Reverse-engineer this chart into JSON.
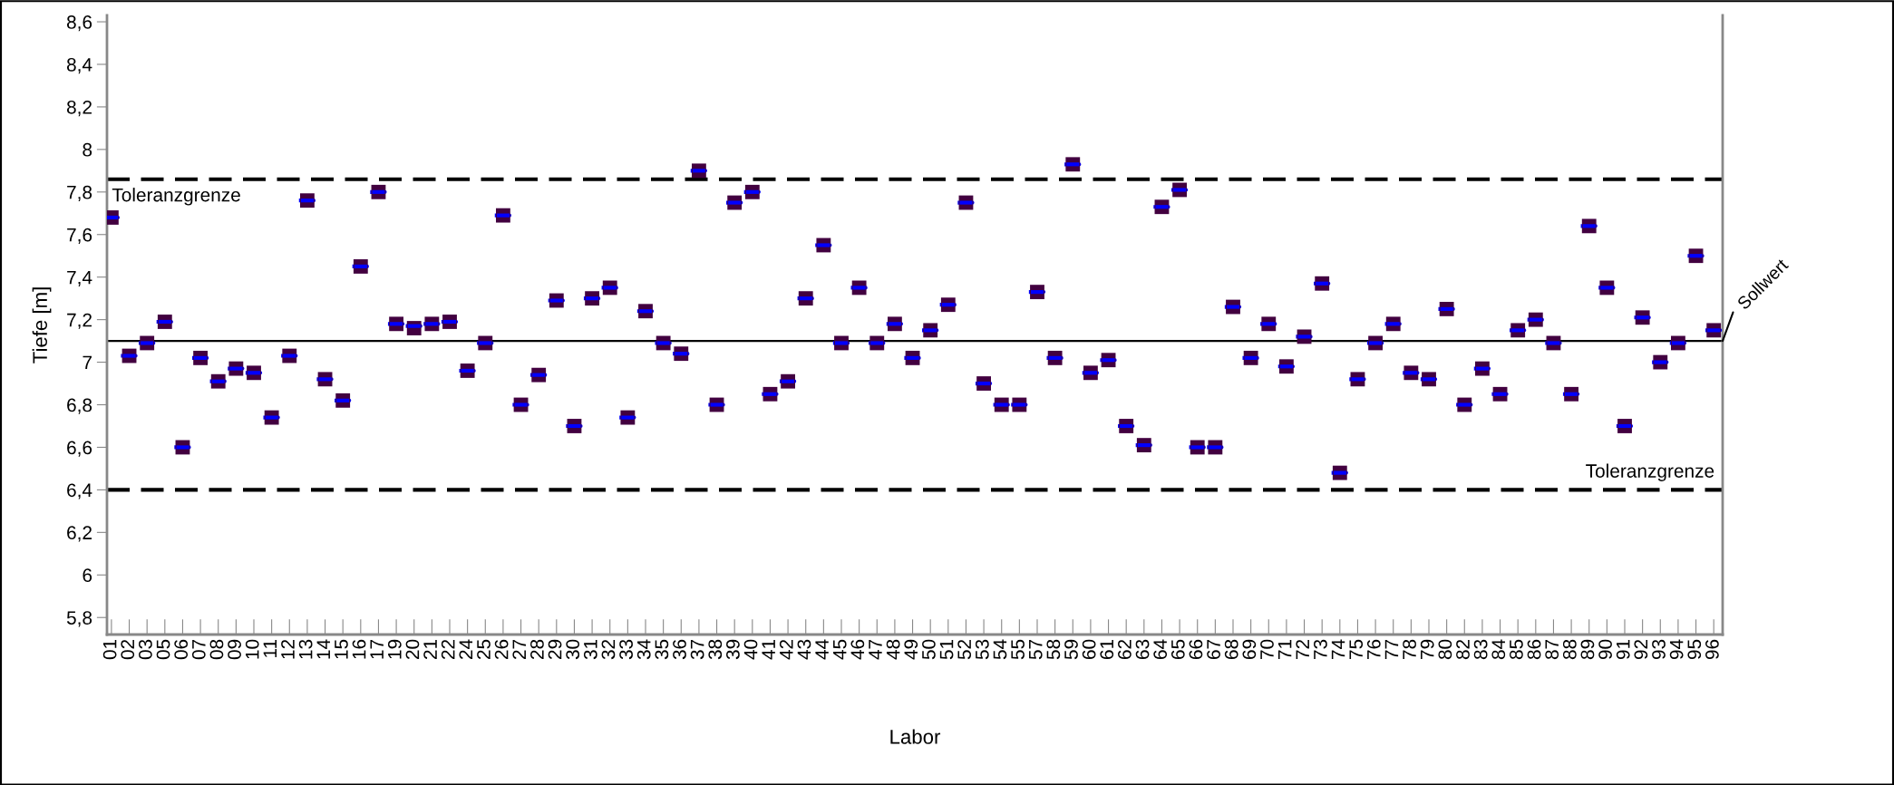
{
  "chart_data": {
    "type": "scatter",
    "xlabel": "Labor",
    "ylabel": "Tiefe [m]",
    "categories": [
      "01",
      "02",
      "03",
      "05",
      "06",
      "07",
      "08",
      "09",
      "10",
      "11",
      "12",
      "13",
      "14",
      "15",
      "16",
      "17",
      "19",
      "20",
      "21",
      "22",
      "24",
      "25",
      "26",
      "27",
      "28",
      "29",
      "30",
      "31",
      "32",
      "33",
      "34",
      "35",
      "36",
      "37",
      "38",
      "39",
      "40",
      "41",
      "42",
      "43",
      "44",
      "45",
      "46",
      "47",
      "48",
      "49",
      "50",
      "51",
      "52",
      "53",
      "54",
      "55",
      "57",
      "58",
      "59",
      "60",
      "61",
      "62",
      "63",
      "64",
      "65",
      "66",
      "67",
      "68",
      "69",
      "70",
      "71",
      "72",
      "73",
      "74",
      "75",
      "76",
      "77",
      "78",
      "79",
      "80",
      "82",
      "83",
      "84",
      "85",
      "86",
      "87",
      "88",
      "89",
      "90",
      "91",
      "92",
      "93",
      "94",
      "95",
      "96"
    ],
    "series": [
      {
        "type": "box",
        "color": "#0000ff",
        "boxes": [
          {
            "low": 7.68,
            "q1": 7.68,
            "median": 7.68,
            "q3": 7.68,
            "high": 7.68
          },
          {
            "low": 7.03,
            "q1": 7.03,
            "median": 7.03,
            "q3": 7.03,
            "high": 7.03
          },
          {
            "low": 7.09,
            "q1": 7.09,
            "median": 7.09,
            "q3": 7.09,
            "high": 7.09
          },
          {
            "low": 7.19,
            "q1": 7.19,
            "median": 7.19,
            "q3": 7.19,
            "high": 7.19
          },
          {
            "low": 6.6,
            "q1": 6.6,
            "median": 6.6,
            "q3": 6.6,
            "high": 6.6
          },
          {
            "low": 7.02,
            "q1": 7.02,
            "median": 7.02,
            "q3": 7.02,
            "high": 7.02
          },
          {
            "low": 6.91,
            "q1": 6.91,
            "median": 6.91,
            "q3": 6.91,
            "high": 6.91
          },
          {
            "low": 6.97,
            "q1": 6.97,
            "median": 6.97,
            "q3": 6.97,
            "high": 6.97
          },
          {
            "low": 6.95,
            "q1": 6.95,
            "median": 6.95,
            "q3": 6.95,
            "high": 6.95
          },
          {
            "low": 6.74,
            "q1": 6.74,
            "median": 6.74,
            "q3": 6.74,
            "high": 6.74
          },
          {
            "low": 7.03,
            "q1": 7.03,
            "median": 7.03,
            "q3": 7.03,
            "high": 7.03
          },
          {
            "low": 7.76,
            "q1": 7.76,
            "median": 7.76,
            "q3": 7.76,
            "high": 7.76
          },
          {
            "low": 6.92,
            "q1": 6.92,
            "median": 6.92,
            "q3": 6.92,
            "high": 6.92
          },
          {
            "low": 6.82,
            "q1": 6.82,
            "median": 6.82,
            "q3": 6.82,
            "high": 6.82
          },
          {
            "low": 7.45,
            "q1": 7.45,
            "median": 7.45,
            "q3": 7.45,
            "high": 7.45
          },
          {
            "low": 7.8,
            "q1": 7.8,
            "median": 7.8,
            "q3": 7.8,
            "high": 7.8
          },
          {
            "low": 7.18,
            "q1": 7.18,
            "median": 7.18,
            "q3": 7.18,
            "high": 7.18
          },
          {
            "low": 7.17,
            "q1": 7.17,
            "median": 7.17,
            "q3": 7.17,
            "high": 7.17
          },
          {
            "low": 7.18,
            "q1": 7.18,
            "median": 7.18,
            "q3": 7.18,
            "high": 7.18
          },
          {
            "low": 7.19,
            "q1": 7.19,
            "median": 7.19,
            "q3": 7.19,
            "high": 7.19
          },
          {
            "low": 6.96,
            "q1": 6.96,
            "median": 6.96,
            "q3": 6.96,
            "high": 6.96
          },
          {
            "low": 7.09,
            "q1": 7.09,
            "median": 7.09,
            "q3": 7.09,
            "high": 7.09
          },
          {
            "low": 7.69,
            "q1": 7.69,
            "median": 7.69,
            "q3": 7.69,
            "high": 7.69
          },
          {
            "low": 6.8,
            "q1": 6.8,
            "median": 6.8,
            "q3": 6.8,
            "high": 6.8
          },
          {
            "low": 6.94,
            "q1": 6.94,
            "median": 6.94,
            "q3": 6.94,
            "high": 6.94
          },
          {
            "low": 7.29,
            "q1": 7.29,
            "median": 7.29,
            "q3": 7.29,
            "high": 7.29
          },
          {
            "low": 6.7,
            "q1": 6.7,
            "median": 6.7,
            "q3": 6.7,
            "high": 6.7
          },
          {
            "low": 7.3,
            "q1": 7.3,
            "median": 7.3,
            "q3": 7.3,
            "high": 7.3
          },
          {
            "low": 7.35,
            "q1": 7.35,
            "median": 7.35,
            "q3": 7.35,
            "high": 7.35
          },
          {
            "low": 6.74,
            "q1": 6.74,
            "median": 6.74,
            "q3": 6.74,
            "high": 6.74
          },
          {
            "low": 7.24,
            "q1": 7.24,
            "median": 7.24,
            "q3": 7.24,
            "high": 7.24
          },
          {
            "low": 7.09,
            "q1": 7.09,
            "median": 7.09,
            "q3": 7.09,
            "high": 7.09
          },
          {
            "low": 7.04,
            "q1": 7.04,
            "median": 7.04,
            "q3": 7.04,
            "high": 7.04
          },
          {
            "low": 7.9,
            "q1": 7.9,
            "median": 7.9,
            "q3": 7.9,
            "high": 7.9
          },
          {
            "low": 6.8,
            "q1": 6.8,
            "median": 6.8,
            "q3": 6.8,
            "high": 6.8
          },
          {
            "low": 7.75,
            "q1": 7.75,
            "median": 7.75,
            "q3": 7.75,
            "high": 7.75
          },
          {
            "low": 7.8,
            "q1": 7.8,
            "median": 7.8,
            "q3": 7.8,
            "high": 7.8
          },
          {
            "low": 6.85,
            "q1": 6.85,
            "median": 6.85,
            "q3": 6.85,
            "high": 6.85
          },
          {
            "low": 6.91,
            "q1": 6.91,
            "median": 6.91,
            "q3": 6.91,
            "high": 6.91
          },
          {
            "low": 7.3,
            "q1": 7.3,
            "median": 7.3,
            "q3": 7.3,
            "high": 7.3
          },
          {
            "low": 7.55,
            "q1": 7.55,
            "median": 7.55,
            "q3": 7.55,
            "high": 7.55
          },
          {
            "low": 7.09,
            "q1": 7.09,
            "median": 7.09,
            "q3": 7.09,
            "high": 7.09
          },
          {
            "low": 7.35,
            "q1": 7.35,
            "median": 7.35,
            "q3": 7.35,
            "high": 7.35
          },
          {
            "low": 7.09,
            "q1": 7.09,
            "median": 7.09,
            "q3": 7.09,
            "high": 7.09
          },
          {
            "low": 7.18,
            "q1": 7.18,
            "median": 7.18,
            "q3": 7.18,
            "high": 7.18
          },
          {
            "low": 7.02,
            "q1": 7.02,
            "median": 7.02,
            "q3": 7.02,
            "high": 7.02
          },
          {
            "low": 7.15,
            "q1": 7.15,
            "median": 7.15,
            "q3": 7.15,
            "high": 7.15
          },
          {
            "low": 7.27,
            "q1": 7.27,
            "median": 7.27,
            "q3": 7.27,
            "high": 7.27
          },
          {
            "low": 7.75,
            "q1": 7.75,
            "median": 7.75,
            "q3": 7.75,
            "high": 7.75
          },
          {
            "low": 6.9,
            "q1": 6.9,
            "median": 6.9,
            "q3": 6.9,
            "high": 6.9
          },
          {
            "low": 6.8,
            "q1": 6.8,
            "median": 6.8,
            "q3": 6.8,
            "high": 6.8
          },
          {
            "low": 6.8,
            "q1": 6.8,
            "median": 6.8,
            "q3": 6.8,
            "high": 6.8
          },
          {
            "low": 7.33,
            "q1": 7.33,
            "median": 7.33,
            "q3": 7.33,
            "high": 7.33
          },
          {
            "low": 7.02,
            "q1": 7.02,
            "median": 7.02,
            "q3": 7.02,
            "high": 7.02
          },
          {
            "low": 7.93,
            "q1": 7.93,
            "median": 7.93,
            "q3": 7.93,
            "high": 7.93
          },
          {
            "low": 6.95,
            "q1": 6.95,
            "median": 6.95,
            "q3": 6.95,
            "high": 6.95
          },
          {
            "low": 7.01,
            "q1": 7.01,
            "median": 7.01,
            "q3": 7.01,
            "high": 7.01
          },
          {
            "low": 6.7,
            "q1": 6.7,
            "median": 6.7,
            "q3": 6.7,
            "high": 6.7
          },
          {
            "low": 6.61,
            "q1": 6.61,
            "median": 6.61,
            "q3": 6.61,
            "high": 6.61
          },
          {
            "low": 7.73,
            "q1": 7.73,
            "median": 7.73,
            "q3": 7.73,
            "high": 7.73
          },
          {
            "low": 7.81,
            "q1": 7.81,
            "median": 7.81,
            "q3": 7.81,
            "high": 7.81
          },
          {
            "low": 6.6,
            "q1": 6.6,
            "median": 6.6,
            "q3": 6.6,
            "high": 6.6
          },
          {
            "low": 6.6,
            "q1": 6.6,
            "median": 6.6,
            "q3": 6.6,
            "high": 6.6
          },
          {
            "low": 7.26,
            "q1": 7.26,
            "median": 7.26,
            "q3": 7.26,
            "high": 7.26
          },
          {
            "low": 7.02,
            "q1": 7.02,
            "median": 7.02,
            "q3": 7.02,
            "high": 7.02
          },
          {
            "low": 7.18,
            "q1": 7.18,
            "median": 7.18,
            "q3": 7.18,
            "high": 7.18
          },
          {
            "low": 6.98,
            "q1": 6.98,
            "median": 6.98,
            "q3": 6.98,
            "high": 6.98
          },
          {
            "low": 7.12,
            "q1": 7.12,
            "median": 7.12,
            "q3": 7.12,
            "high": 7.12
          },
          {
            "low": 7.37,
            "q1": 7.37,
            "median": 7.37,
            "q3": 7.37,
            "high": 7.37
          },
          {
            "low": 6.48,
            "q1": 6.48,
            "median": 6.48,
            "q3": 6.48,
            "high": 6.48
          },
          {
            "low": 6.92,
            "q1": 6.92,
            "median": 6.92,
            "q3": 6.92,
            "high": 6.92
          },
          {
            "low": 7.09,
            "q1": 7.09,
            "median": 7.09,
            "q3": 7.09,
            "high": 7.09
          },
          {
            "low": 7.18,
            "q1": 7.18,
            "median": 7.18,
            "q3": 7.18,
            "high": 7.18
          },
          {
            "low": 6.95,
            "q1": 6.95,
            "median": 6.95,
            "q3": 6.95,
            "high": 6.95
          },
          {
            "low": 6.92,
            "q1": 6.92,
            "median": 6.92,
            "q3": 6.92,
            "high": 6.92
          },
          {
            "low": 7.25,
            "q1": 7.25,
            "median": 7.25,
            "q3": 7.25,
            "high": 7.25
          },
          {
            "low": 6.8,
            "q1": 6.8,
            "median": 6.8,
            "q3": 6.8,
            "high": 6.8
          },
          {
            "low": 6.97,
            "q1": 6.97,
            "median": 6.97,
            "q3": 6.97,
            "high": 6.97
          },
          {
            "low": 6.85,
            "q1": 6.85,
            "median": 6.85,
            "q3": 6.85,
            "high": 6.85
          },
          {
            "low": 7.15,
            "q1": 7.15,
            "median": 7.15,
            "q3": 7.15,
            "high": 7.15
          },
          {
            "low": 7.2,
            "q1": 7.2,
            "median": 7.2,
            "q3": 7.2,
            "high": 7.2
          },
          {
            "low": 7.09,
            "q1": 7.09,
            "median": 7.09,
            "q3": 7.09,
            "high": 7.09
          },
          {
            "low": 6.85,
            "q1": 6.85,
            "median": 6.85,
            "q3": 6.85,
            "high": 6.85
          },
          {
            "low": 7.64,
            "q1": 7.64,
            "median": 7.64,
            "q3": 7.64,
            "high": 7.64
          },
          {
            "low": 7.35,
            "q1": 7.35,
            "median": 7.35,
            "q3": 7.35,
            "high": 7.35
          },
          {
            "low": 6.7,
            "q1": 6.7,
            "median": 6.7,
            "q3": 6.7,
            "high": 6.7
          },
          {
            "low": 7.21,
            "q1": 7.21,
            "median": 7.21,
            "q3": 7.21,
            "high": 7.21
          },
          {
            "low": 7.0,
            "q1": 7.0,
            "median": 7.0,
            "q3": 7.0,
            "high": 7.0
          },
          {
            "low": 7.09,
            "q1": 7.09,
            "median": 7.09,
            "q3": 7.09,
            "high": 7.09
          },
          {
            "low": 7.5,
            "q1": 7.5,
            "median": 7.5,
            "q3": 7.5,
            "high": 7.5
          },
          {
            "low": 7.15,
            "q1": 7.15,
            "median": 7.15,
            "q3": 7.15,
            "high": 7.15
          }
        ]
      },
      {
        "color": "#420040",
        "marker": "square",
        "values": [
          7.68,
          7.03,
          7.09,
          7.19,
          6.6,
          7.02,
          6.91,
          6.97,
          6.95,
          6.74,
          7.03,
          7.76,
          6.92,
          6.82,
          7.45,
          7.8,
          7.18,
          7.16,
          7.18,
          7.19,
          6.96,
          7.09,
          7.69,
          6.8,
          6.94,
          7.29,
          6.7,
          7.3,
          7.35,
          6.74,
          7.24,
          7.09,
          7.04,
          7.9,
          6.8,
          7.75,
          7.8,
          6.85,
          6.91,
          7.3,
          7.55,
          7.09,
          7.35,
          7.09,
          7.18,
          7.02,
          7.15,
          7.27,
          7.75,
          6.9,
          6.8,
          6.8,
          7.33,
          7.02,
          7.93,
          6.95,
          7.01,
          6.7,
          6.61,
          7.73,
          7.81,
          6.6,
          6.6,
          7.26,
          7.02,
          7.18,
          6.98,
          7.12,
          7.37,
          6.48,
          6.92,
          7.09,
          7.18,
          6.95,
          6.92,
          7.25,
          6.8,
          6.97,
          6.85,
          7.15,
          7.2,
          7.09,
          6.85,
          7.64,
          7.35,
          6.7,
          7.21,
          7.0,
          7.09,
          7.5,
          7.15
        ]
      }
    ],
    "ylim": [
      5.72,
      8.63
    ],
    "yticks": [
      {
        "value": 5.8,
        "label": "5,8"
      },
      6,
      {
        "value": 6.2,
        "label": "6,2"
      },
      {
        "value": 6.4,
        "label": "6,4"
      },
      {
        "value": 6.6,
        "label": "6,6"
      },
      {
        "value": 6.8,
        "label": "6,8"
      },
      7,
      {
        "value": 7.2,
        "label": "7,2"
      },
      {
        "value": 7.4,
        "label": "7,4"
      },
      {
        "value": 7.6,
        "label": "7,6"
      },
      {
        "value": 7.8,
        "label": "7,8"
      },
      8,
      {
        "value": 8.2,
        "label": "8,2"
      },
      {
        "value": 8.4,
        "label": "8,4"
      },
      {
        "value": 8.6,
        "label": "8,6"
      }
    ],
    "grid": false,
    "legend": false,
    "ref_lines": [
      {
        "axis": "y",
        "value": 7.86,
        "label": "Toleranzgrenze",
        "color": "#000000",
        "line_style": "dashed"
      },
      {
        "axis": "y",
        "value": 6.4,
        "label": "Toleranzgrenze",
        "color": "#000000",
        "line_style": "dashed"
      },
      {
        "axis": "y",
        "value": 7.1,
        "label": "Sollwert",
        "color": "#000000",
        "line_style": "solid"
      }
    ]
  }
}
